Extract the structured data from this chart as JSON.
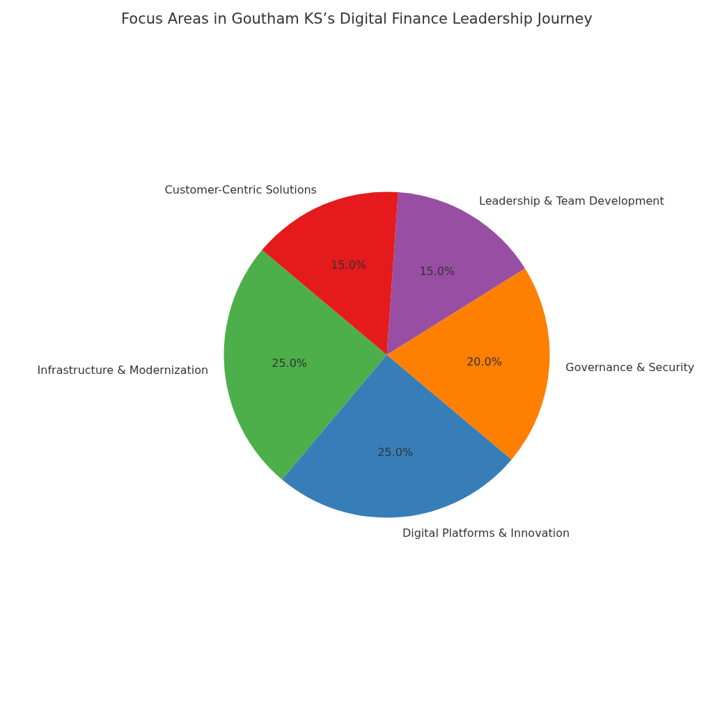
{
  "chart_data": {
    "type": "pie",
    "title": "Focus Areas in Goutham KS’s Digital Finance Leadership Journey",
    "categories": [
      "Infrastructure & Modernization",
      "Digital Platforms & Innovation",
      "Governance & Security",
      "Leadership & Team Development",
      "Customer-Centric Solutions"
    ],
    "values": [
      25,
      25,
      20,
      15,
      15
    ],
    "colors": [
      "#4daf4a",
      "#377eb8",
      "#ff7f00",
      "#984ea3",
      "#e41a1c"
    ],
    "value_labels": [
      "25.0%",
      "25.0%",
      "20.0%",
      "15.0%",
      "15.0%"
    ]
  }
}
